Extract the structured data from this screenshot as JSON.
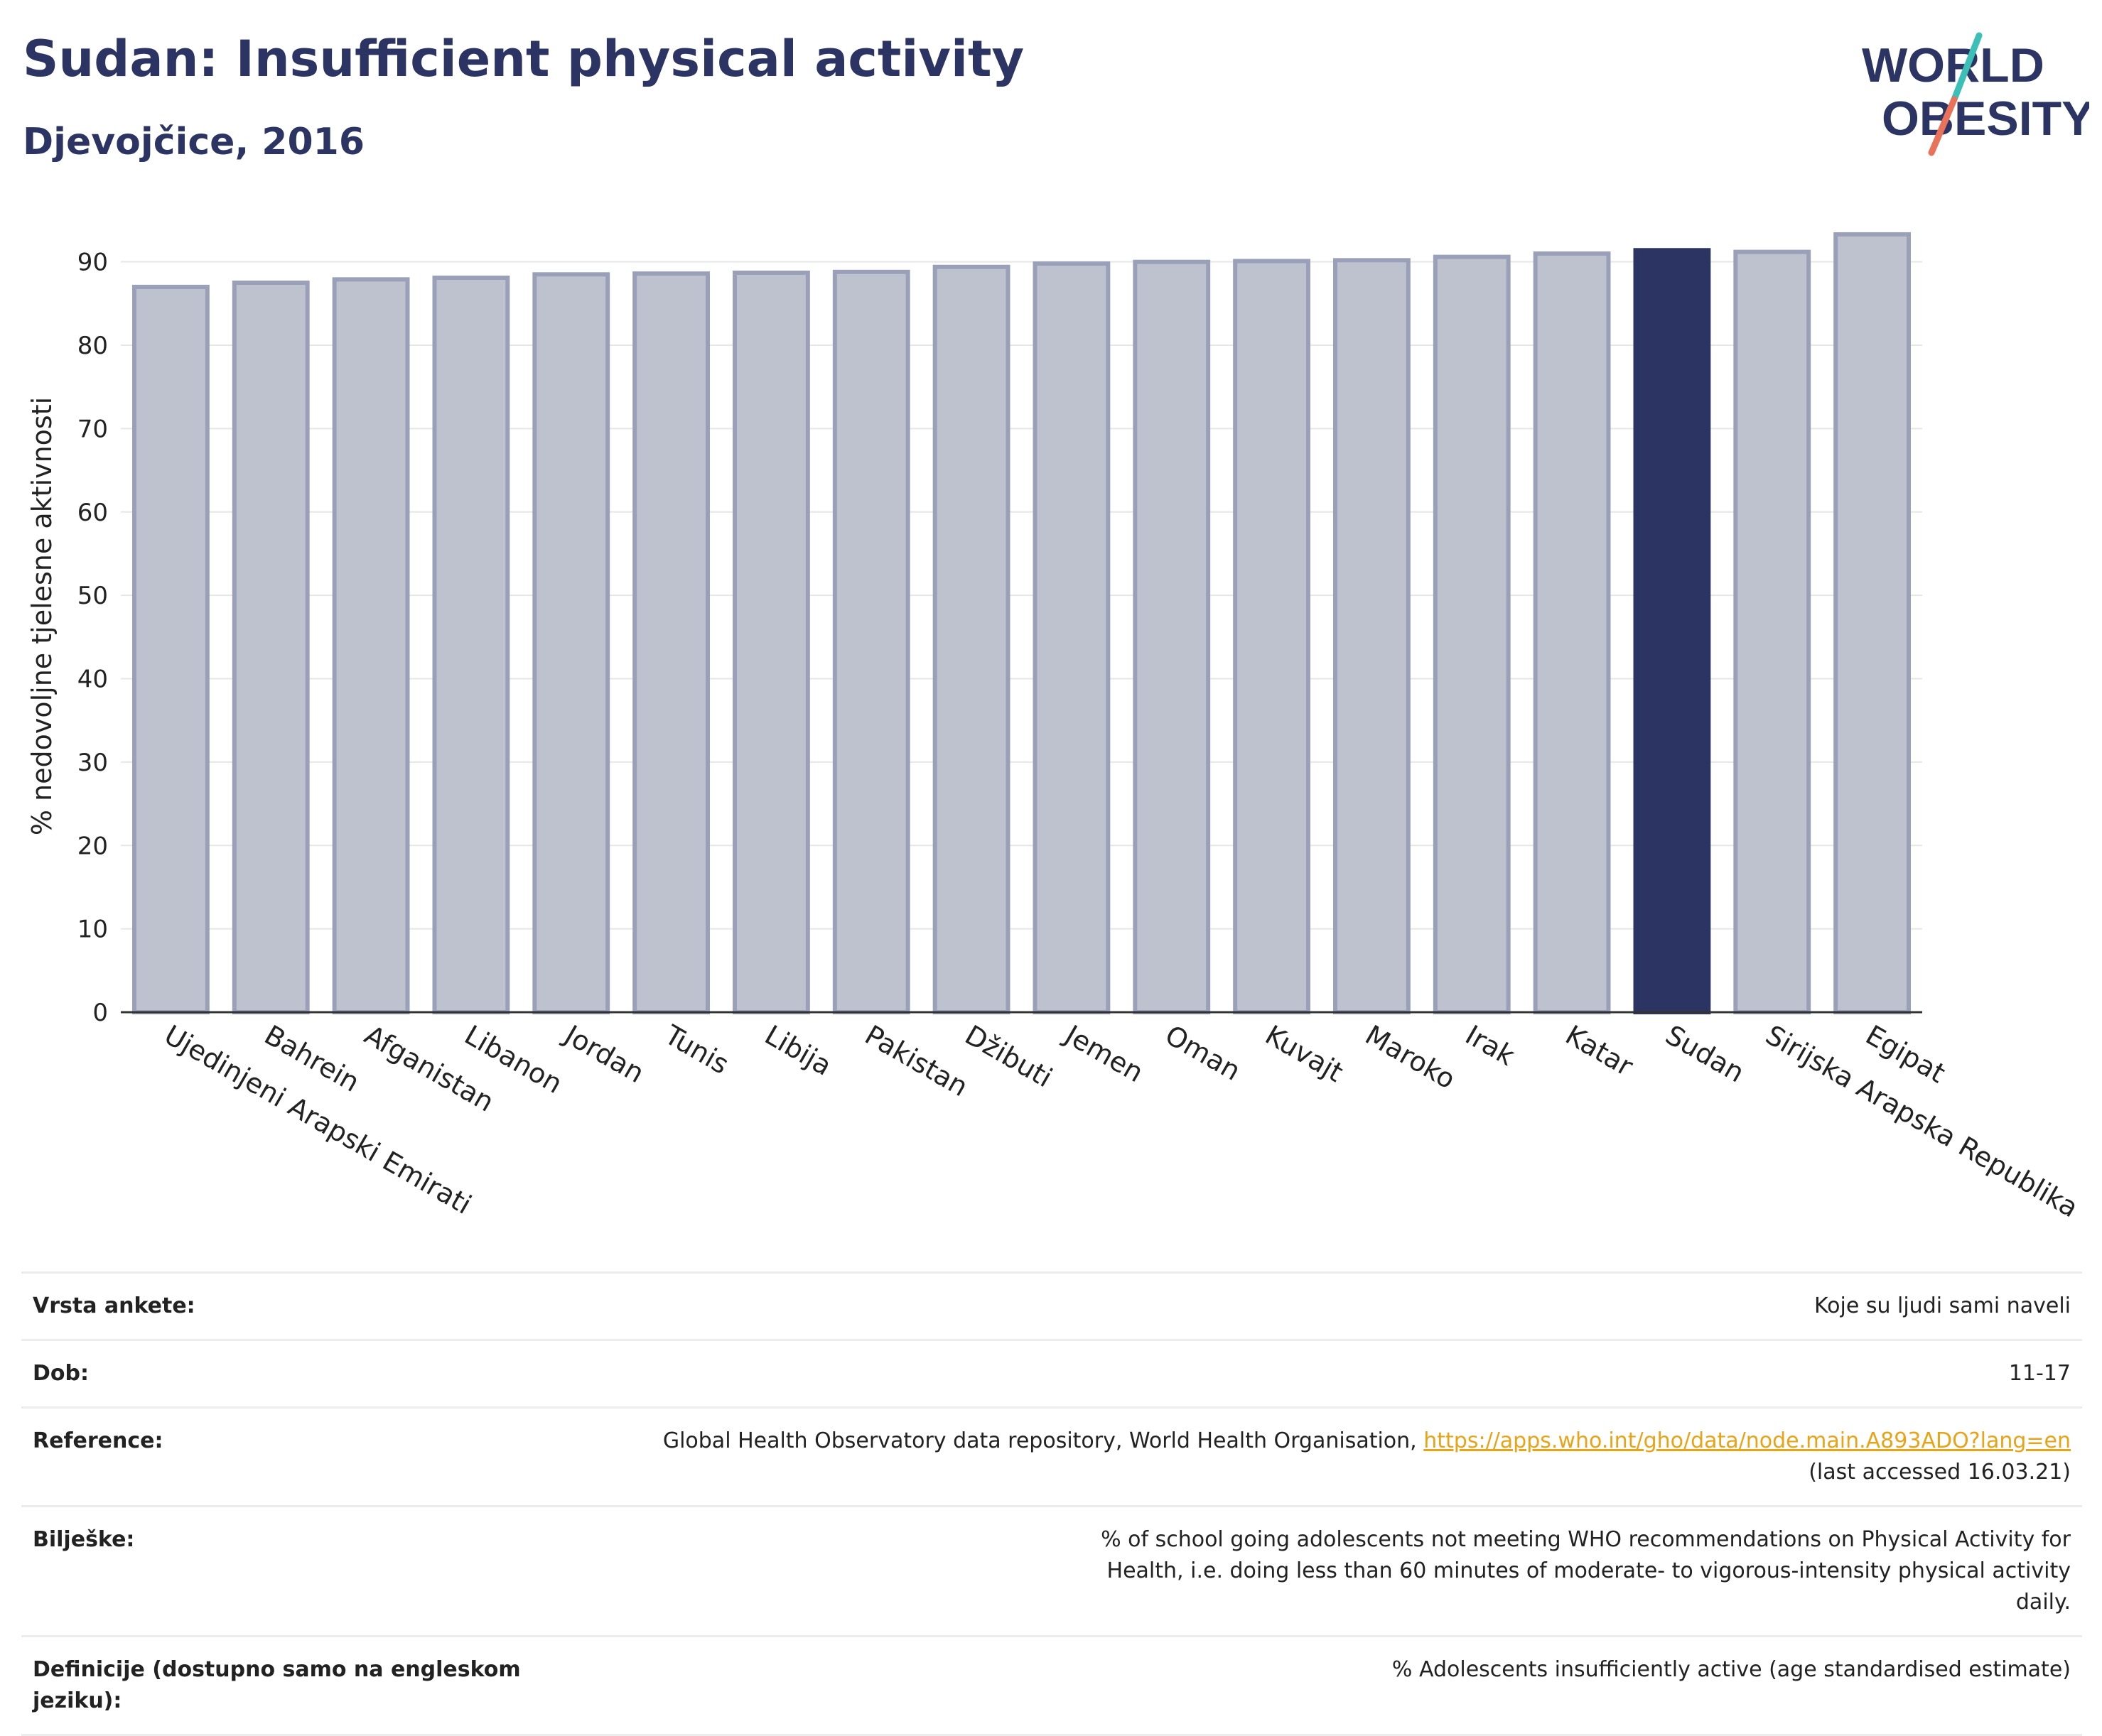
{
  "header": {
    "title": "Sudan: Insufficient physical activity",
    "subtitle": "Djevojčice, 2016"
  },
  "logo": {
    "line1": "WORLD",
    "line2": "OBESITY",
    "accent_colors": [
      "#3bbfb6",
      "#e8735a"
    ],
    "text_color": "#2b3462"
  },
  "chart_data": {
    "type": "bar",
    "ylabel": "% nedovoljne tjelesne aktivnosti",
    "ylim": [
      0,
      95
    ],
    "yticks": [
      0,
      10,
      20,
      30,
      40,
      50,
      60,
      70,
      80,
      90
    ],
    "grid": true,
    "categories": [
      "Ujedinjeni Arapski Emirati",
      "Bahrein",
      "Afganistan",
      "Libanon",
      "Jordan",
      "Tunis",
      "Libija",
      "Pakistan",
      "Džibuti",
      "Jemen",
      "Oman",
      "Kuvajt",
      "Maroko",
      "Irak",
      "Katar",
      "Sudan",
      "Sirijska Arapska Republika",
      "Egipat"
    ],
    "values": [
      87.0,
      87.5,
      87.9,
      88.1,
      88.5,
      88.6,
      88.7,
      88.8,
      89.4,
      89.8,
      90.0,
      90.1,
      90.2,
      90.6,
      91.0,
      91.4,
      91.2,
      93.3
    ],
    "highlight": "Sudan",
    "colors": {
      "bar": "#bec2cf",
      "bar_border": "#9aa0b8",
      "highlight": "#2b3462"
    }
  },
  "meta": {
    "survey_label": "Vrsta ankete:",
    "survey_value": "Koje su ljudi sami naveli",
    "age_label": "Dob:",
    "age_value": "11-17",
    "ref_label": "Reference:",
    "ref_text": "Global Health Observatory data repository, World Health Organisation,",
    "ref_link": "https://apps.who.int/gho/data/node.main.A893ADO?lang=en",
    "ref_accessed": "(last accessed 16.03.21)",
    "notes_label": "Bilješke:",
    "notes_value": "% of school going adolescents not meeting WHO recommendations on Physical Activity for Health, i.e. doing less than 60 minutes of moderate- to vigorous-intensity physical activity daily.",
    "def_label": "Definicije (dostupno samo na engleskom jeziku):",
    "def_value": "% Adolescents insufficiently active (age standardised estimate)"
  }
}
